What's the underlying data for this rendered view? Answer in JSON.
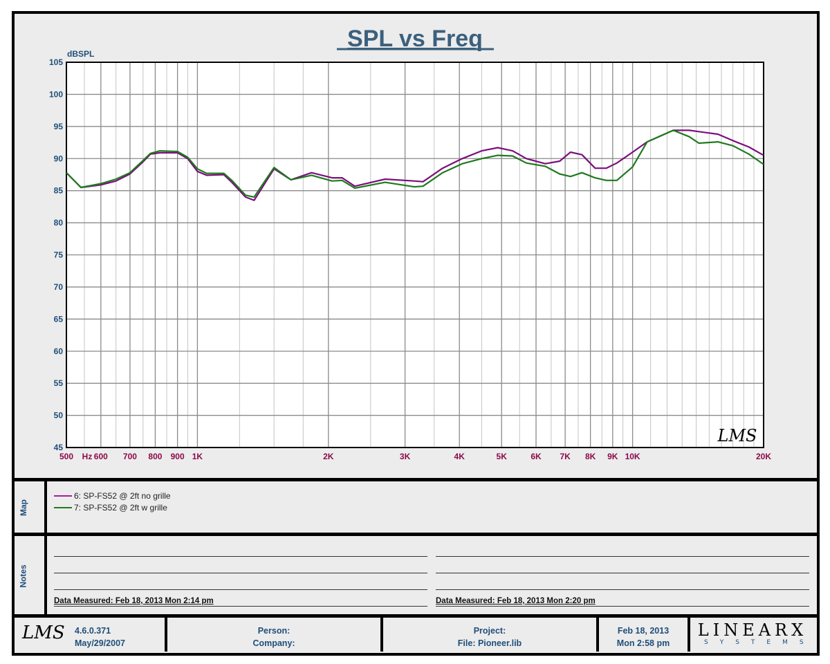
{
  "chart_data": {
    "type": "line",
    "title": "SPL vs Freq",
    "xlabel": "Hz",
    "ylabel": "dBSPL",
    "xscale": "log",
    "xlim": [
      500,
      20000
    ],
    "ylim": [
      45,
      105
    ],
    "grid": true,
    "y_ticks": [
      "105",
      "100",
      "95",
      "90",
      "85",
      "80",
      "75",
      "70",
      "65",
      "60",
      "55",
      "50",
      "45"
    ],
    "x_ticks": [
      {
        "f": 500,
        "label": "500"
      },
      {
        "f": 600,
        "label": "600"
      },
      {
        "f": 700,
        "label": "700"
      },
      {
        "f": 800,
        "label": "800"
      },
      {
        "f": 900,
        "label": "900"
      },
      {
        "f": 1000,
        "label": "1K"
      },
      {
        "f": 2000,
        "label": "2K"
      },
      {
        "f": 3000,
        "label": "3K"
      },
      {
        "f": 4000,
        "label": "4K"
      },
      {
        "f": 5000,
        "label": "5K"
      },
      {
        "f": 6000,
        "label": "6K"
      },
      {
        "f": 7000,
        "label": "7K"
      },
      {
        "f": 8000,
        "label": "8K"
      },
      {
        "f": 9000,
        "label": "9K"
      },
      {
        "f": 10000,
        "label": "10K"
      },
      {
        "f": 20000,
        "label": "20K"
      }
    ],
    "x": [
      500,
      540,
      600,
      650,
      700,
      750,
      780,
      820,
      900,
      950,
      1000,
      1050,
      1150,
      1200,
      1290,
      1350,
      1500,
      1640,
      1830,
      2040,
      2150,
      2300,
      2700,
      3150,
      3300,
      3660,
      4060,
      4500,
      4900,
      5300,
      5700,
      6300,
      6800,
      7200,
      7650,
      8200,
      8700,
      9200,
      10000,
      10800,
      12400,
      13500,
      14200,
      15700,
      17000,
      18500,
      20000
    ],
    "series": [
      {
        "name": "6: SP-FS52 @ 2ft no grille",
        "color": "#7b0f7b",
        "values": [
          87.8,
          85.5,
          85.9,
          86.5,
          87.6,
          89.5,
          90.7,
          90.9,
          90.9,
          90.0,
          88.0,
          87.4,
          87.5,
          86.3,
          84.0,
          83.5,
          88.4,
          86.7,
          87.8,
          87.0,
          87.0,
          85.7,
          86.8,
          86.5,
          86.4,
          88.5,
          90.0,
          91.2,
          91.7,
          91.2,
          90.0,
          89.2,
          89.6,
          91.0,
          90.6,
          88.5,
          88.5,
          89.3,
          91.0,
          92.6,
          94.4,
          94.4,
          94.2,
          93.8,
          92.8,
          91.8,
          90.5
        ]
      },
      {
        "name": "7: SP-FS52 @ 2ft w grille",
        "color": "#1e7a1e",
        "values": [
          87.8,
          85.5,
          86.1,
          86.8,
          87.8,
          89.7,
          90.8,
          91.2,
          91.1,
          90.2,
          88.4,
          87.7,
          87.7,
          86.6,
          84.3,
          84.0,
          88.6,
          86.7,
          87.4,
          86.5,
          86.6,
          85.4,
          86.3,
          85.6,
          85.7,
          87.8,
          89.2,
          90.0,
          90.5,
          90.4,
          89.3,
          88.8,
          87.6,
          87.2,
          87.8,
          87.0,
          86.6,
          86.6,
          88.7,
          92.6,
          94.4,
          93.4,
          92.4,
          92.6,
          92.0,
          90.7,
          89.1
        ]
      }
    ],
    "watermark": "LMS"
  },
  "map": {
    "label": "Map"
  },
  "notes": {
    "label": "Notes",
    "measured_left": "Data Measured: Feb 18, 2013  Mon  2:14 pm",
    "measured_right": "Data Measured: Feb 18, 2013  Mon  2:20 pm"
  },
  "footer": {
    "logo": "LMS",
    "version": "4.6.0.371",
    "version_date": "May/29/2007",
    "person": "Person:",
    "company": "Company:",
    "project": "Project:",
    "file": "File: Pioneer.lib",
    "date": "Feb 18, 2013",
    "time": "Mon  2:58 pm",
    "brand": "LINEARX",
    "brand_sub": "SYSTEMS"
  }
}
